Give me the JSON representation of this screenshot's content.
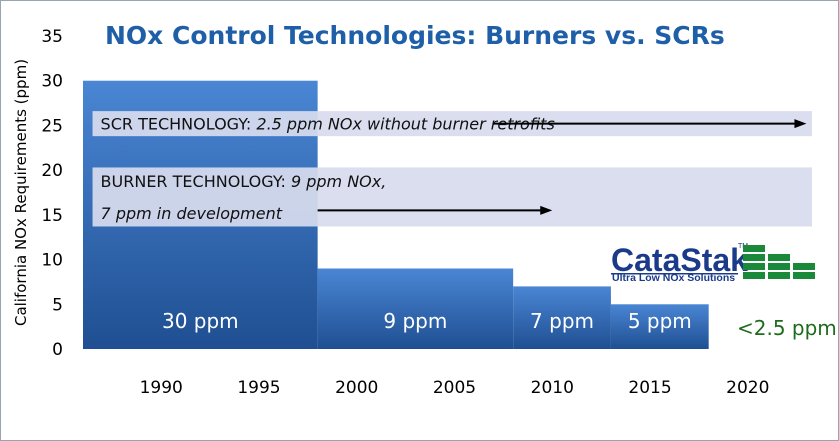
{
  "chart_data": {
    "type": "bar",
    "title": "NOx Control Technologies: Burners vs. SCRs",
    "ylabel": "California NOx Requirements (ppm)",
    "xlabel": "",
    "ylim": [
      0,
      35
    ],
    "yticks": [
      0,
      5,
      10,
      15,
      20,
      25,
      30,
      35
    ],
    "xlim": [
      1986,
      2024
    ],
    "xticks": [
      "1990",
      "1995",
      "2000",
      "2005",
      "2010",
      "2015",
      "2020"
    ],
    "grid": false,
    "bars": [
      {
        "start": 1986,
        "end": 1998,
        "value": 30,
        "label": "30 ppm"
      },
      {
        "start": 1998,
        "end": 2008,
        "value": 9,
        "label": "9 ppm"
      },
      {
        "start": 2008,
        "end": 2013,
        "value": 7,
        "label": "7 ppm"
      },
      {
        "start": 2013,
        "end": 2018,
        "value": 5,
        "label": "5 ppm"
      }
    ],
    "outside_label": {
      "year": 2022,
      "value": 2.5,
      "label": "<2.5 ppm"
    },
    "bands": [
      {
        "name": "scr",
        "ymin": 23.8,
        "ymax": 26.6,
        "xstart": 1987,
        "xend": 2024,
        "lines": [
          {
            "prefix": "SCR TECHNOLOGY: ",
            "italic": "2.5 ppm NOx without burner retrofits"
          }
        ],
        "arrow": {
          "from_year": 2007,
          "to_year": 2023,
          "y": 25.2
        }
      },
      {
        "name": "burner",
        "ymin": 13.7,
        "ymax": 20.3,
        "xstart": 1987,
        "xend": 2024,
        "lines": [
          {
            "prefix": "BURNER TECHNOLOGY: ",
            "italic": "9 ppm NOx,"
          },
          {
            "prefix": "",
            "italic": "7 ppm in development"
          }
        ],
        "arrow": {
          "from_year": 1998,
          "to_year": 2010,
          "y": 15.5
        }
      }
    ],
    "colors": {
      "bar_top": "#4a86d4",
      "bar_bottom": "#1f4f92",
      "band": "#d7dbee",
      "title": "#1f5fa8",
      "outside_label": "#1e6b1e"
    }
  },
  "logo": {
    "name": "CataStak",
    "tm": "TM",
    "tagline": "Ultra Low NOx Solutions",
    "color": "#1b3a8a",
    "accent": "#1a8a3a"
  }
}
